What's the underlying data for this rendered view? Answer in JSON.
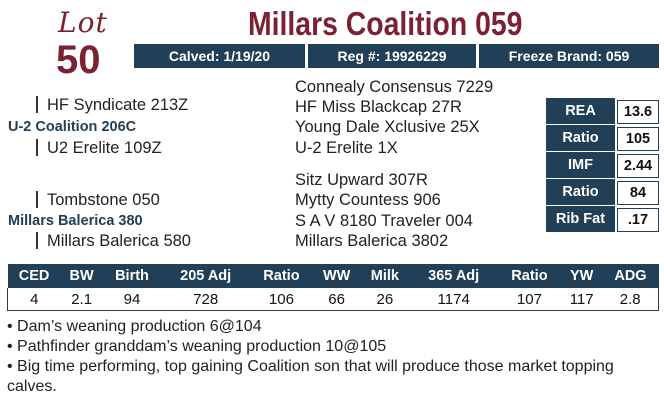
{
  "lot": {
    "word": "Lot",
    "number": "50"
  },
  "title": "Millars Coalition 059",
  "info": {
    "calved": "Calved: 1/19/20",
    "reg": "Reg #: 19926229",
    "freeze": "Freeze Brand: 059"
  },
  "pedigree": {
    "sire": "U-2 Coalition 206C",
    "sire_sire": "HF Syndicate 213Z",
    "sire_dam": "U2 Erelite 109Z",
    "sss": "Connealy Consensus 7229",
    "ssd": "HF Miss Blackcap 27R",
    "sds": "Young Dale Xclusive 25X",
    "sdd": "U-2 Erelite 1X",
    "dam": "Millars Balerica 380",
    "dam_sire": "Tombstone 050",
    "dam_dam": "Millars Balerica 580",
    "dss": "Sitz Upward 307R",
    "dsd": "Mytty Countess 906",
    "dds": "S A V 8180 Traveler 004",
    "ddd": "Millars Balerica 3802"
  },
  "carcass": [
    {
      "label": "REA",
      "value": "13.6"
    },
    {
      "label": "Ratio",
      "value": "105"
    },
    {
      "label": "IMF",
      "value": "2.44"
    },
    {
      "label": "Ratio",
      "value": "84"
    },
    {
      "label": "Rib Fat",
      "value": ".17"
    }
  ],
  "performance": {
    "headers": [
      "CED",
      "BW",
      "Birth",
      "205 Adj",
      "Ratio",
      "WW",
      "Milk",
      "365 Adj",
      "Ratio",
      "YW",
      "ADG"
    ],
    "values": [
      "4",
      "2.1",
      "94",
      "728",
      "106",
      "66",
      "26",
      "1174",
      "107",
      "117",
      "2.8"
    ]
  },
  "notes": [
    "• Dam’s weaning production 6@104",
    "• Pathfinder granddam’s weaning production 10@105",
    "• Big time performing, top gaining Coalition son that will produce those market topping calves."
  ]
}
